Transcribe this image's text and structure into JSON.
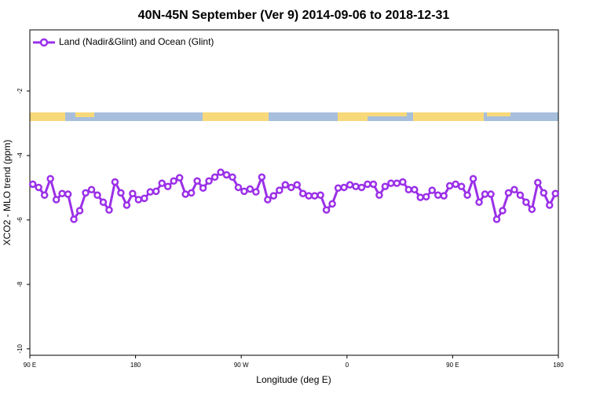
{
  "chart_data": {
    "type": "line",
    "title": "40N-45N September (Ver 9)   2014-09-06 to 2018-12-31",
    "x_label": "Longitude (deg E)",
    "y_label": "XCO2 - MLO trend (ppm)",
    "xlim": [
      90,
      540
    ],
    "ylim": [
      -10.2,
      -0.1
    ],
    "xticks": [
      {
        "value": 90,
        "label": "90 E"
      },
      {
        "value": 180,
        "label": "180"
      },
      {
        "value": 270,
        "label": "90 W"
      },
      {
        "value": 360,
        "label": "0"
      },
      {
        "value": 450,
        "label": "90 E"
      },
      {
        "value": 540,
        "label": "180"
      }
    ],
    "yticks": [
      -10,
      -8,
      -6,
      -4,
      -2
    ],
    "legend_position": "top-left",
    "x": [
      92.5,
      97.5,
      102.5,
      107.5,
      112.5,
      117.5,
      122.5,
      127.5,
      132.5,
      137.5,
      142.5,
      147.5,
      152.5,
      157.5,
      162.5,
      167.5,
      172.5,
      177.5,
      182.5,
      187.5,
      192.5,
      197.5,
      202.5,
      207.5,
      212.5,
      217.5,
      222.5,
      227.5,
      232.5,
      237.5,
      242.5,
      247.5,
      252.5,
      257.5,
      262.5,
      267.5,
      272.5,
      277.5,
      282.5,
      287.5,
      292.5,
      297.5,
      302.5,
      307.5,
      312.5,
      317.5,
      322.5,
      327.5,
      332.5,
      337.5,
      342.5,
      347.5,
      352.5,
      357.5,
      362.5,
      367.5,
      372.5,
      377.5,
      382.5,
      387.5,
      392.5,
      397.5,
      402.5,
      407.5,
      412.5,
      417.5,
      422.5,
      427.5,
      432.5,
      437.5,
      442.5,
      447.5,
      452.5,
      457.5,
      462.5,
      467.5,
      472.5,
      477.5,
      482.5,
      487.5,
      492.5,
      497.5,
      502.5,
      507.5,
      512.5,
      517.5,
      522.5,
      527.5,
      532.5,
      537.5
    ],
    "series": [
      {
        "name": "Land (Nadir&Glint) and Ocean (Glint)",
        "color": "#9b30e8",
        "values": [
          -4.89,
          -4.99,
          -5.23,
          -4.72,
          -5.37,
          -5.18,
          -5.2,
          -5.98,
          -5.71,
          -5.16,
          -5.06,
          -5.23,
          -5.45,
          -5.69,
          -4.82,
          -5.16,
          -5.54,
          -5.18,
          -5.37,
          -5.33,
          -5.13,
          -5.11,
          -4.86,
          -4.96,
          -4.79,
          -4.69,
          -5.2,
          -5.16,
          -4.79,
          -5.01,
          -4.79,
          -4.67,
          -4.52,
          -4.6,
          -4.67,
          -4.99,
          -5.11,
          -5.04,
          -5.13,
          -4.67,
          -5.37,
          -5.25,
          -5.08,
          -4.91,
          -4.99,
          -4.91,
          -5.18,
          -5.25,
          -5.25,
          -5.23,
          -5.69,
          -5.5,
          -5.01,
          -4.99,
          -4.91,
          -4.96,
          -4.99,
          -4.89,
          -4.89,
          -5.23,
          -4.96,
          -4.86,
          -4.86,
          -4.82,
          -5.06,
          -5.06,
          -5.3,
          -5.28,
          -5.08,
          -5.23,
          -5.25,
          -4.94,
          -4.89,
          -4.96,
          -5.23,
          -4.72,
          -5.45,
          -5.2,
          -5.2,
          -5.98,
          -5.71,
          -5.16,
          -5.06,
          -5.23,
          -5.45,
          -5.67,
          -4.84,
          -5.16,
          -5.54,
          -5.18
        ]
      }
    ]
  }
}
